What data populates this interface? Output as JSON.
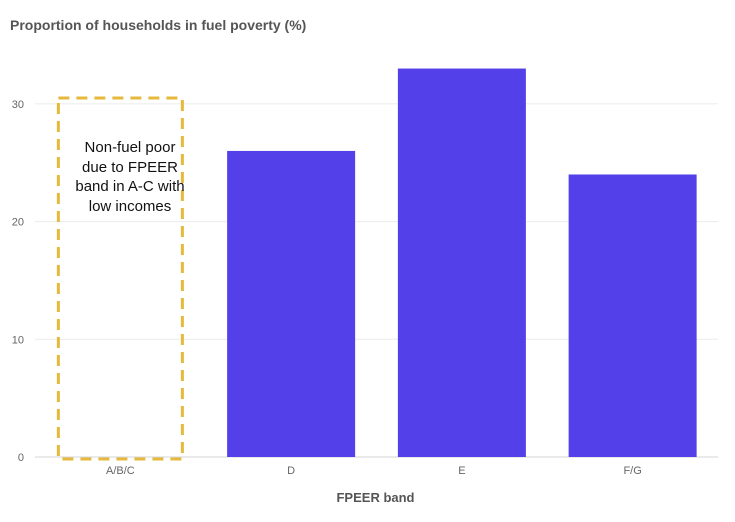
{
  "chart_data": {
    "type": "bar",
    "title": "Proportion of households in fuel poverty (%)",
    "xlabel": "FPEER band",
    "ylabel": "",
    "categories": [
      "A/B/C",
      "D",
      "E",
      "F/G"
    ],
    "values": [
      null,
      26,
      33,
      24
    ],
    "ylim": [
      0,
      35
    ],
    "yticks": [
      0,
      10,
      20,
      30
    ],
    "grid": true,
    "bar_color": "#5340e8",
    "annotation": {
      "text": "Non-fuel poor due to FPEER band in A-C with low incomes",
      "category": "A/B/C",
      "box_top_value": 30.5,
      "border_color": "#e6b93c",
      "style": "dashed"
    }
  }
}
